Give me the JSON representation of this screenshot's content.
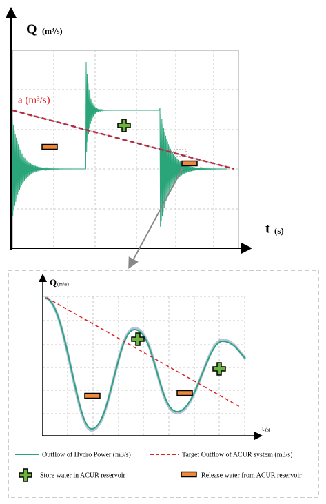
{
  "top_chart": {
    "y_label": "Q",
    "y_unit": "(m³/s)",
    "x_label": "t",
    "x_unit": "(s)",
    "line_label": "a (m³/s)"
  },
  "zoom_chart": {
    "y_label": "Q",
    "y_unit": "(m³/s)",
    "x_label": "t",
    "x_unit": "(s)"
  },
  "legend": [
    {
      "label": "Outflow of Hydro Power (m3/s)"
    },
    {
      "label": "Target Outflow of ACUR system (m3/s)"
    },
    {
      "label": "Store water in ACUR reservoir"
    },
    {
      "label": "Release water from ACUR reservoir"
    }
  ]
}
